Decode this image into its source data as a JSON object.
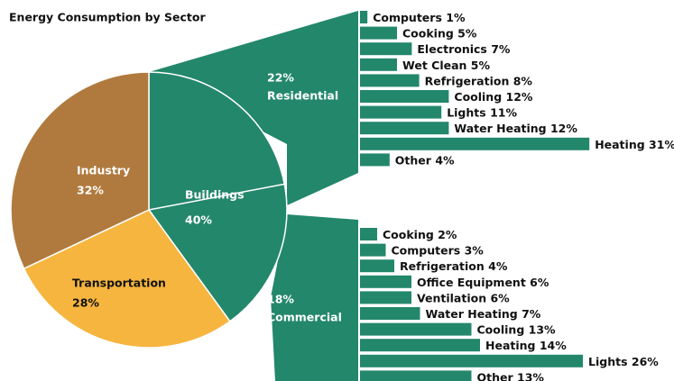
{
  "chart_data": [
    {
      "type": "pie",
      "title": "Energy Consumption by Sector",
      "categories": [
        "Buildings",
        "Transportation",
        "Industry"
      ],
      "values": [
        40,
        28,
        32
      ],
      "value_labels": [
        "40%",
        "28%",
        "32%"
      ],
      "colors": [
        "#23876b",
        "#f6b53f",
        "#b07a3e"
      ]
    },
    {
      "type": "bar",
      "name": "Residential",
      "share": 22,
      "share_label": "22%",
      "color": "#23876b",
      "categories": [
        "Computers",
        "Cooking",
        "Electronics",
        "Wet Clean",
        "Refrigeration",
        "Cooling",
        "Lights",
        "Water Heating",
        "Heating",
        "Other"
      ],
      "values": [
        1,
        5,
        7,
        5,
        8,
        12,
        11,
        12,
        31,
        4
      ],
      "value_labels": [
        "1%",
        "5%",
        "7%",
        "5%",
        "8%",
        "12%",
        "11%",
        "12%",
        "31%",
        "4%"
      ]
    },
    {
      "type": "bar",
      "name": "Commercial",
      "share": 18,
      "share_label": "18%",
      "color": "#23876b",
      "categories": [
        "Cooking",
        "Computers",
        "Refrigeration",
        "Office Equipment",
        "Ventilation",
        "Water Heating",
        "Cooling",
        "Heating",
        "Lights",
        "Other"
      ],
      "values": [
        2,
        3,
        4,
        6,
        6,
        7,
        13,
        14,
        26,
        13
      ],
      "value_labels": [
        "2%",
        "3%",
        "4%",
        "6%",
        "6%",
        "7%",
        "13%",
        "14%",
        "26%",
        "13%"
      ]
    }
  ]
}
